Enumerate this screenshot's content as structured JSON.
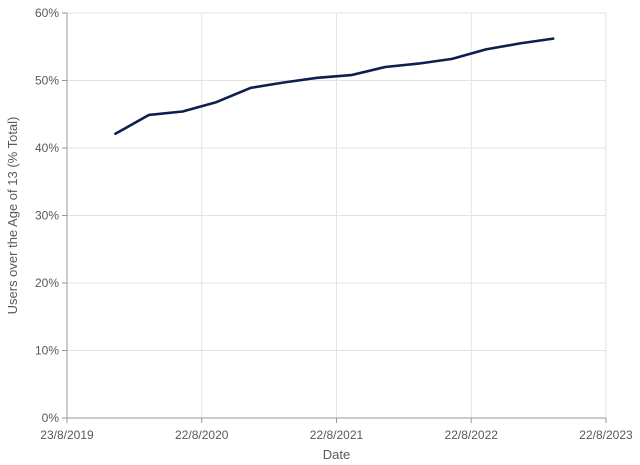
{
  "chart_data": {
    "type": "line",
    "xlabel": "Date",
    "ylabel": "Users over the Age of 13 (% Total)",
    "xlim": [
      "2019-08-23",
      "2023-08-22"
    ],
    "ylim": [
      0,
      0.6
    ],
    "x_ticks": [
      "2019-08-23",
      "2020-08-22",
      "2021-08-22",
      "2022-08-22",
      "2023-08-22"
    ],
    "x_tick_labels": [
      "23/8/2019",
      "22/8/2020",
      "22/8/2021",
      "22/8/2022",
      "22/8/2023"
    ],
    "y_ticks": [
      0,
      0.1,
      0.2,
      0.3,
      0.4,
      0.5,
      0.6
    ],
    "y_tick_labels": [
      "0%",
      "10%",
      "20%",
      "30%",
      "40%",
      "50%",
      "60%"
    ],
    "grid": true,
    "series": [
      {
        "color": "#0d1f4f",
        "x": [
          "2020-01-01",
          "2020-04-01",
          "2020-07-01",
          "2020-10-01",
          "2021-01-01",
          "2021-04-01",
          "2021-07-01",
          "2021-10-01",
          "2022-01-01",
          "2022-04-01",
          "2022-07-01",
          "2022-10-01",
          "2023-01-01",
          "2023-04-01"
        ],
        "values": [
          0.421,
          0.449,
          0.454,
          0.468,
          0.489,
          0.497,
          0.504,
          0.508,
          0.52,
          0.525,
          0.532,
          0.546,
          0.555,
          0.562
        ]
      }
    ]
  }
}
